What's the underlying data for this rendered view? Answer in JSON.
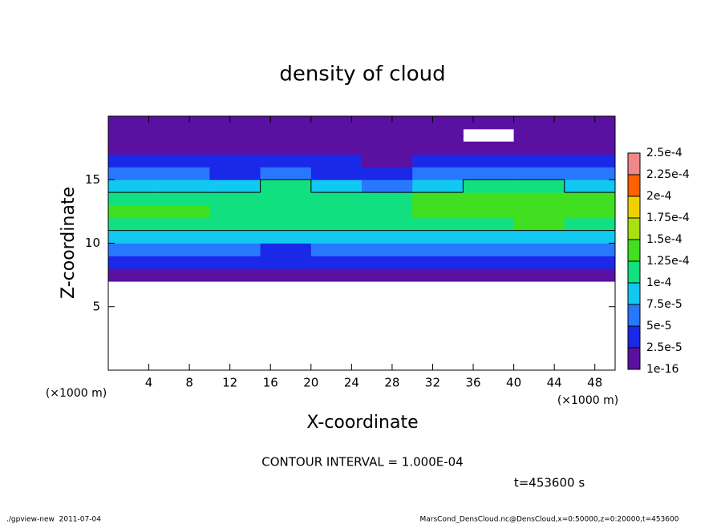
{
  "chart_data": {
    "type": "heatmap",
    "title": "density of cloud",
    "x_label": "X-coordinate",
    "y_label": "Z-coordinate",
    "x_unit": "(×1000 m)",
    "y_unit": "(×1000 m)",
    "xlim": [
      0,
      50
    ],
    "xticks": [
      4,
      8,
      12,
      16,
      20,
      24,
      28,
      32,
      36,
      40,
      44,
      48
    ],
    "ylim": [
      0,
      20
    ],
    "yticks": [
      5,
      10,
      15
    ],
    "x": [
      2.5,
      7.5,
      12.5,
      17.5,
      22.5,
      27.5,
      32.5,
      37.5,
      42.5,
      47.5
    ],
    "y": [
      0.5,
      1.5,
      2.5,
      3.5,
      4.5,
      5.5,
      6.5,
      7.5,
      8.5,
      9.5,
      10.5,
      11.5,
      12.5,
      13.5,
      14.5,
      15.5,
      16.5,
      17.5,
      18.5,
      19.5
    ],
    "z": [
      [
        null,
        null,
        null,
        null,
        null,
        null,
        null,
        null,
        null,
        null
      ],
      [
        null,
        null,
        null,
        null,
        null,
        null,
        null,
        null,
        null,
        null
      ],
      [
        null,
        null,
        null,
        null,
        null,
        null,
        null,
        null,
        null,
        null
      ],
      [
        null,
        null,
        null,
        null,
        null,
        null,
        null,
        null,
        null,
        null
      ],
      [
        null,
        null,
        null,
        null,
        null,
        null,
        null,
        null,
        null,
        null
      ],
      [
        null,
        null,
        null,
        null,
        null,
        null,
        null,
        null,
        null,
        null
      ],
      [
        null,
        null,
        null,
        null,
        null,
        null,
        null,
        null,
        null,
        null
      ],
      [
        1.5e-05,
        1.5e-05,
        1.5e-05,
        1.5e-05,
        1e-05,
        1.5e-05,
        1.5e-05,
        1.5e-05,
        1.5e-05,
        1.5e-05
      ],
      [
        4e-05,
        4e-05,
        4e-05,
        3.5e-05,
        4e-05,
        4e-05,
        4e-05,
        4e-05,
        4e-05,
        4e-05
      ],
      [
        6.5e-05,
        6.5e-05,
        6e-05,
        4.5e-05,
        6e-05,
        6.5e-05,
        6.5e-05,
        6.5e-05,
        6.5e-05,
        6.5e-05
      ],
      [
        9e-05,
        9.5e-05,
        9e-05,
        8.5e-05,
        9e-05,
        9.5e-05,
        9.5e-05,
        9.5e-05,
        9.5e-05,
        9e-05
      ],
      [
        0.000115,
        0.000115,
        0.00011,
        0.00011,
        0.00011,
        0.000115,
        0.000115,
        0.00012,
        0.000125,
        0.00012
      ],
      [
        0.000125,
        0.000125,
        0.00012,
        0.00012,
        0.00012,
        0.00012,
        0.000125,
        0.000135,
        0.00014,
        0.00013
      ],
      [
        0.00012,
        0.00012,
        0.000115,
        0.000115,
        0.000105,
        0.00011,
        0.000125,
        0.00013,
        0.00014,
        0.000125
      ],
      [
        9e-05,
        8e-05,
        8e-05,
        0.000105,
        8e-05,
        7e-05,
        9e-05,
        0.000105,
        0.00011,
        9.5e-05
      ],
      [
        6e-05,
        5e-05,
        4.5e-05,
        6e-05,
        4.5e-05,
        4e-05,
        5e-05,
        6e-05,
        7e-05,
        6e-05
      ],
      [
        3e-05,
        3e-05,
        3e-05,
        3.5e-05,
        2.5e-05,
        2e-05,
        2.5e-05,
        3.5e-05,
        4e-05,
        3.5e-05
      ],
      [
        1.5e-05,
        1.5e-05,
        2e-05,
        1.5e-05,
        1e-05,
        1e-05,
        1e-05,
        1.5e-05,
        1.5e-05,
        2e-05
      ],
      [
        1e-05,
        1e-05,
        1e-05,
        1e-05,
        1e-05,
        1e-05,
        5e-06,
        null,
        1e-05,
        1e-05
      ],
      [
        1e-05,
        1e-05,
        1e-05,
        1e-05,
        1e-05,
        1e-05,
        1e-05,
        1e-05,
        1e-05,
        1e-05
      ]
    ],
    "colorbar_ticks": [
      {
        "value": 1e-16,
        "label": "1e-16"
      },
      {
        "value": 2.5e-05,
        "label": "2.5e-5"
      },
      {
        "value": 5e-05,
        "label": "5e-5"
      },
      {
        "value": 7.5e-05,
        "label": "7.5e-5"
      },
      {
        "value": 0.0001,
        "label": "1e-4"
      },
      {
        "value": 0.000125,
        "label": "1.25e-4"
      },
      {
        "value": 0.00015,
        "label": "1.5e-4"
      },
      {
        "value": 0.000175,
        "label": "1.75e-4"
      },
      {
        "value": 0.0002,
        "label": "2e-4"
      },
      {
        "value": 0.000225,
        "label": "2.25e-4"
      },
      {
        "value": 0.00025,
        "label": "2.5e-4"
      }
    ],
    "colors": [
      "#5a10a0",
      "#1a28e8",
      "#2878ff",
      "#10c8f0",
      "#10e080",
      "#40e020",
      "#a8e010",
      "#f0d000",
      "#ff6000",
      "#f08888"
    ],
    "contour": {
      "value": 0.0001,
      "label": "CONTOUR INTERVAL = 1.000E-04"
    },
    "time_label": "t=453600 s",
    "footer_left": "./gpview-new  2011-07-04",
    "footer_right": "MarsCond_DensCloud.nc@DensCloud,x=0:50000,z=0:20000,t=453600"
  }
}
